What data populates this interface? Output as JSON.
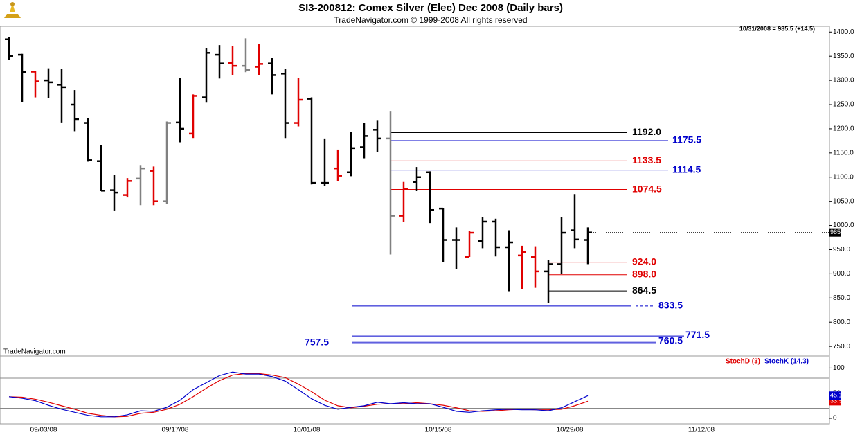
{
  "chart_data": [
    {
      "type": "ohlc",
      "title": "SI3-200812:  Comex Silver (Elec) Dec 2008  (Daily bars)",
      "subtitle": "TradeNavigator.com © 1999-2008 All rights reserved",
      "annotation": "10/31/2008 = 985.5 (+14.5)",
      "watermark": "TradeNavigator.com",
      "categories": [
        null,
        null,
        null,
        "09/03/08",
        null,
        null,
        null,
        null,
        null,
        null,
        null,
        null,
        null,
        "09/17/08",
        null,
        null,
        null,
        null,
        null,
        null,
        null,
        null,
        null,
        "10/01/08",
        null,
        null,
        null,
        null,
        null,
        null,
        null,
        null,
        null,
        "10/15/08",
        null,
        null,
        null,
        null,
        null,
        null,
        null,
        null,
        null,
        "10/29/08",
        null,
        null,
        null,
        null,
        null,
        null,
        null,
        null,
        null,
        "11/12/08"
      ],
      "open": [
        1385,
        1353,
        1318,
        1300,
        1291,
        1250,
        1212,
        1133,
        1073,
        1063,
        1097,
        1113,
        1050,
        1213,
        1190,
        1265,
        1353,
        1336,
        1330,
        1328,
        1335,
        1314,
        1212,
        1262,
        1088,
        1118,
        1110,
        1162,
        1198,
        1180,
        1020,
        1090,
        1110,
        1035,
        970,
        935,
        968,
        1008,
        955,
        938,
        935,
        905,
        920,
        990,
        970,
        null,
        null,
        null,
        null,
        null,
        null,
        null,
        null,
        null
      ],
      "high": [
        1390,
        1355,
        1320,
        1325,
        1323,
        1280,
        1222,
        1167,
        1104,
        1098,
        1125,
        1122,
        1215,
        1305,
        1271,
        1367,
        1373,
        1371,
        1387,
        1376,
        1346,
        1324,
        1305,
        1265,
        1180,
        1157,
        1194,
        1212,
        1218,
        1237,
        1090,
        1121,
        1112,
        1036,
        996,
        989,
        1018,
        1014,
        990,
        958,
        957,
        929,
        1018,
        1065,
        996,
        null,
        null,
        null,
        null,
        null,
        null,
        null,
        null,
        null
      ],
      "low": [
        1343,
        1255,
        1265,
        1263,
        1213,
        1195,
        1132,
        1071,
        1031,
        1058,
        1042,
        1042,
        1045,
        1172,
        1181,
        1254,
        1304,
        1311,
        1317,
        1311,
        1271,
        1181,
        1205,
        1085,
        1082,
        1092,
        1102,
        1139,
        1152,
        940,
        1008,
        1071,
        1005,
        925,
        910,
        935,
        953,
        936,
        864,
        868,
        871,
        840,
        900,
        953,
        920,
        null,
        null,
        null,
        null,
        null,
        null,
        null,
        null,
        null
      ],
      "close": [
        1350,
        1317,
        1298,
        1296,
        1286,
        1220,
        1135,
        1072,
        1068,
        1092,
        1118,
        1050,
        1212,
        1200,
        1268,
        1357,
        1335,
        1330,
        1322,
        1334,
        1311,
        1212,
        1260,
        1088,
        1088,
        1103,
        1160,
        1185,
        1180,
        1020,
        1075,
        1100,
        1032,
        970,
        970,
        985,
        1008,
        955,
        965,
        945,
        905,
        920,
        985,
        971,
        985.5,
        null,
        null,
        null,
        null,
        null,
        null,
        null,
        null,
        null
      ],
      "colors": [
        "#000000",
        "#000000",
        "#e00000",
        "#000000",
        "#000000",
        "#000000",
        "#000000",
        "#000000",
        "#000000",
        "#e00000",
        "#808080",
        "#e00000",
        "#808080",
        "#000000",
        "#e00000",
        "#000000",
        "#000000",
        "#e00000",
        "#808080",
        "#e00000",
        "#000000",
        "#000000",
        "#e00000",
        "#000000",
        "#000000",
        "#e00000",
        "#000000",
        "#000000",
        "#000000",
        "#808080",
        "#e00000",
        "#000000",
        "#000000",
        "#000000",
        "#000000",
        "#e00000",
        "#000000",
        "#000000",
        "#000000",
        "#e00000",
        "#e00000",
        "#000000",
        "#000000",
        "#000000",
        "#000000",
        null,
        null,
        null,
        null,
        null,
        null,
        null,
        null,
        null
      ],
      "ylim": [
        733,
        1409
      ],
      "yticks": [
        {
          "value": 750,
          "label": "750.0"
        },
        {
          "value": 800,
          "label": "800.0"
        },
        {
          "value": 850,
          "label": "850.0"
        },
        {
          "value": 900,
          "label": "900.0"
        },
        {
          "value": 950,
          "label": "950.0"
        },
        {
          "value": 1000,
          "label": "1000.0"
        },
        {
          "value": 1050,
          "label": "1050.0"
        },
        {
          "value": 1100,
          "label": "1100.0"
        },
        {
          "value": 1150,
          "label": "1150.0"
        },
        {
          "value": 1200,
          "label": "1200.0"
        },
        {
          "value": 1250,
          "label": "1250.0"
        },
        {
          "value": 1300,
          "label": "1300.0"
        },
        {
          "value": 1350,
          "label": "1350.0"
        },
        {
          "value": 1400,
          "label": "1400.0"
        }
      ],
      "levels": [
        {
          "value": 1192,
          "label": "1192.0",
          "color": "#000000"
        },
        {
          "value": 1175.5,
          "color": "#0000cc"
        },
        {
          "value": 1133.5,
          "color": "#e00000"
        },
        {
          "value": 1114.5,
          "color": "#0000cc"
        },
        {
          "value": 1074.5,
          "color": "#e00000"
        },
        {
          "value": 924,
          "label": "924.0",
          "color": "#e00000"
        },
        {
          "value": 898,
          "label": "898.0",
          "color": "#e00000"
        },
        {
          "value": 864.5,
          "color": "#000000"
        },
        {
          "value": 833.5,
          "color": "#0000cc"
        },
        {
          "value": 771.5,
          "color": "#0000cc"
        },
        {
          "value": 760.5,
          "color": "#0000cc"
        },
        {
          "value": 757.5,
          "color": "#0000cc"
        }
      ]
    },
    {
      "type": "line",
      "series": [
        {
          "name": "StochD (3)",
          "color": "#e00000",
          "values": [
            43,
            42,
            38,
            32,
            25,
            18,
            10,
            6,
            3,
            4,
            10,
            12,
            18,
            28,
            43,
            60,
            75,
            86,
            89,
            89,
            86,
            81,
            68,
            53,
            36,
            25,
            21,
            24,
            28,
            29,
            29,
            31,
            29,
            26,
            21,
            15,
            14,
            15,
            17,
            18,
            17,
            17,
            18,
            25,
            33.95
          ]
        },
        {
          "name": "StochK (14,3)",
          "color": "#0000cc",
          "values": [
            43,
            40,
            35,
            26,
            18,
            12,
            6,
            3,
            3,
            7,
            15,
            14,
            22,
            36,
            57,
            71,
            85,
            92,
            88,
            88,
            83,
            74,
            57,
            39,
            26,
            18,
            22,
            25,
            32,
            29,
            31,
            29,
            29,
            22,
            14,
            12,
            15,
            17,
            18,
            17,
            17,
            15,
            21,
            33,
            45.11
          ]
        }
      ],
      "ylim": [
        -11,
        124
      ],
      "yticks": [
        0,
        50,
        100
      ],
      "reference_lines": [
        80,
        20
      ]
    }
  ]
}
